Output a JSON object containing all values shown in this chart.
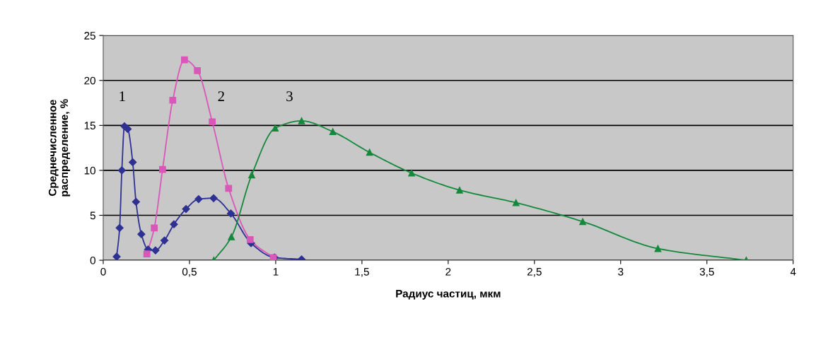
{
  "chart_data": {
    "type": "line",
    "xlabel": "Радиус частиц, мкм",
    "ylabel": "Среднечисленное\nраспределение, %",
    "xlim": [
      0,
      4
    ],
    "ylim": [
      0,
      25
    ],
    "xticks": [
      0,
      {
        "value": 0.5,
        "label": "0,5"
      },
      1,
      {
        "value": 1.5,
        "label": "1,5"
      },
      2,
      {
        "value": 2.5,
        "label": "2,5"
      },
      3,
      {
        "value": 3.5,
        "label": "3,5"
      },
      4
    ],
    "yticks": [
      0,
      5,
      10,
      15,
      20,
      25
    ],
    "grid": "y",
    "line_style": "solid",
    "series": [
      {
        "color": "#2e3192",
        "marker": "diamond",
        "x": [
          0.078,
          0.095,
          0.108,
          0.123,
          0.142,
          0.171,
          0.19,
          0.221,
          0.26,
          0.303,
          0.355,
          0.41,
          0.48,
          0.553,
          0.64,
          0.74,
          0.857,
          0.993,
          1.15
        ],
        "values": [
          0.4,
          3.6,
          10.0,
          14.9,
          14.6,
          10.9,
          6.5,
          2.9,
          1.2,
          1.1,
          2.2,
          4.0,
          5.7,
          6.8,
          6.9,
          5.2,
          1.9,
          0.3,
          0.1
        ]
      },
      {
        "color": "#d957b8",
        "marker": "square",
        "x": [
          0.253,
          0.296,
          0.344,
          0.403,
          0.471,
          0.546,
          0.632,
          0.727,
          0.852,
          0.986
        ],
        "values": [
          0.7,
          3.6,
          10.1,
          17.8,
          22.3,
          21.1,
          15.4,
          8.0,
          2.3,
          0.3
        ]
      },
      {
        "color": "#14893c",
        "marker": "triangle",
        "x": [
          0.641,
          0.743,
          0.861,
          0.997,
          1.15,
          1.331,
          1.544,
          1.788,
          2.066,
          2.393,
          2.78,
          3.216,
          3.728
        ],
        "values": [
          0.0,
          2.6,
          9.5,
          14.7,
          15.5,
          14.3,
          12.0,
          9.7,
          7.8,
          6.4,
          4.3,
          1.3,
          0.0
        ]
      }
    ],
    "annotations": [
      "1",
      "2",
      "3"
    ]
  }
}
